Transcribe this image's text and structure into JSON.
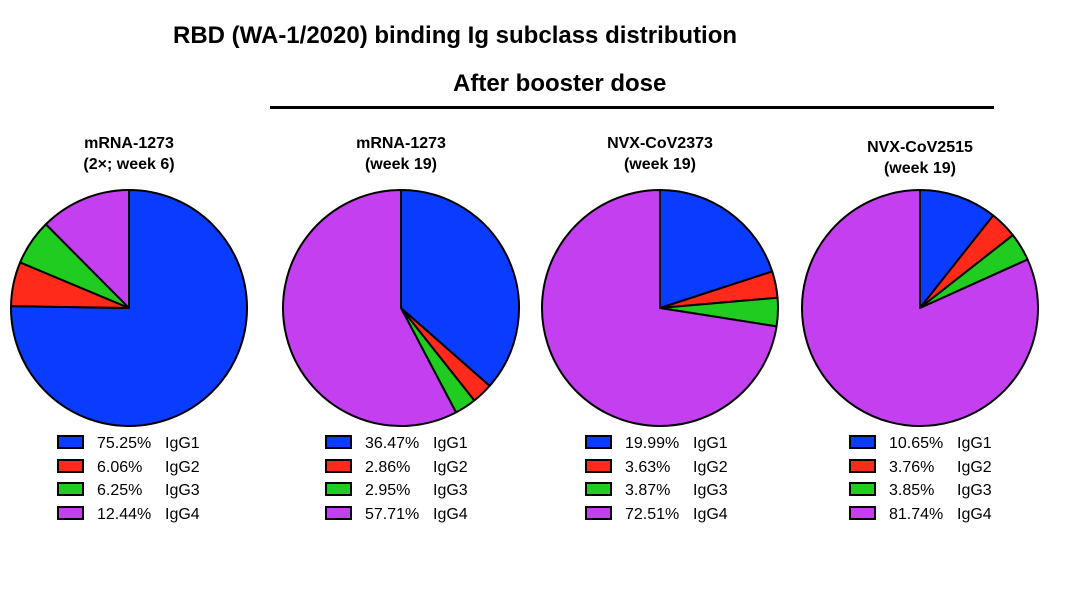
{
  "title": "RBD (WA-1/2020) binding Ig subclass distribution",
  "group_label": "After booster dose",
  "colors": {
    "IgG1": "#0a3cff",
    "IgG2": "#ff2a1a",
    "IgG3": "#1fcc1f",
    "IgG4": "#c43ff0"
  },
  "chart_data": [
    {
      "type": "pie",
      "title_lines": [
        "mRNA-1273",
        "(2×; week 6)"
      ],
      "slices": [
        {
          "label": "IgG1",
          "value": 75.25,
          "display": "75.25%"
        },
        {
          "label": "IgG2",
          "value": 6.06,
          "display": "6.06%"
        },
        {
          "label": "IgG3",
          "value": 6.25,
          "display": "6.25%"
        },
        {
          "label": "IgG4",
          "value": 12.44,
          "display": "12.44%"
        }
      ]
    },
    {
      "type": "pie",
      "title_lines": [
        "mRNA-1273",
        "(week 19)"
      ],
      "slices": [
        {
          "label": "IgG1",
          "value": 36.47,
          "display": "36.47%"
        },
        {
          "label": "IgG2",
          "value": 2.86,
          "display": "2.86%"
        },
        {
          "label": "IgG3",
          "value": 2.95,
          "display": "2.95%"
        },
        {
          "label": "IgG4",
          "value": 57.71,
          "display": "57.71%"
        }
      ]
    },
    {
      "type": "pie",
      "title_lines": [
        "NVX-CoV2373",
        "(week 19)"
      ],
      "slices": [
        {
          "label": "IgG1",
          "value": 19.99,
          "display": "19.99%"
        },
        {
          "label": "IgG2",
          "value": 3.63,
          "display": "3.63%"
        },
        {
          "label": "IgG3",
          "value": 3.87,
          "display": "3.87%"
        },
        {
          "label": "IgG4",
          "value": 72.51,
          "display": "72.51%"
        }
      ]
    },
    {
      "type": "pie",
      "title_lines": [
        "NVX-CoV2515",
        "(week 19)"
      ],
      "slices": [
        {
          "label": "IgG1",
          "value": 10.65,
          "display": "10.65%"
        },
        {
          "label": "IgG2",
          "value": 3.76,
          "display": "3.76%"
        },
        {
          "label": "IgG3",
          "value": 3.85,
          "display": "3.85%"
        },
        {
          "label": "IgG4",
          "value": 81.74,
          "display": "81.74%"
        }
      ]
    }
  ]
}
